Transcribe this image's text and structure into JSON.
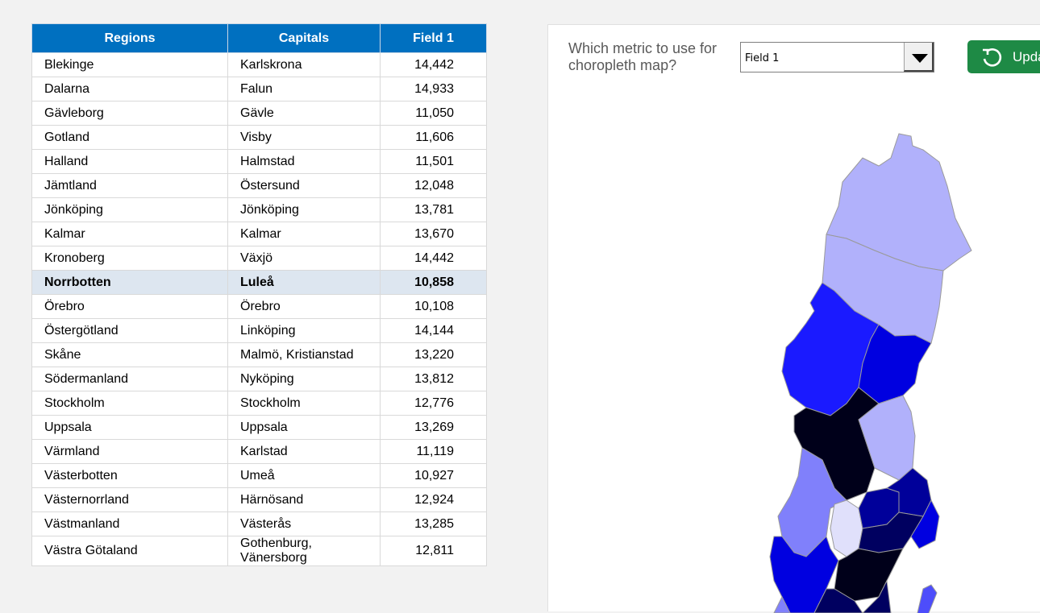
{
  "table": {
    "headers": [
      "Regions",
      "Capitals",
      "Field 1"
    ],
    "selected_index": 9,
    "rows": [
      {
        "region": "Blekinge",
        "capital": "Karlskrona",
        "value": "14,442"
      },
      {
        "region": "Dalarna",
        "capital": "Falun",
        "value": "14,933"
      },
      {
        "region": "Gävleborg",
        "capital": "Gävle",
        "value": "11,050"
      },
      {
        "region": "Gotland",
        "capital": "Visby",
        "value": "11,606"
      },
      {
        "region": "Halland",
        "capital": "Halmstad",
        "value": "11,501"
      },
      {
        "region": "Jämtland",
        "capital": "Östersund",
        "value": "12,048"
      },
      {
        "region": "Jönköping",
        "capital": "Jönköping",
        "value": "13,781"
      },
      {
        "region": "Kalmar",
        "capital": "Kalmar",
        "value": "13,670"
      },
      {
        "region": "Kronoberg",
        "capital": "Växjö",
        "value": "14,442"
      },
      {
        "region": "Norrbotten",
        "capital": "Luleå",
        "value": "10,858"
      },
      {
        "region": "Örebro",
        "capital": "Örebro",
        "value": "10,108"
      },
      {
        "region": "Östergötland",
        "capital": "Linköping",
        "value": "14,144"
      },
      {
        "region": "Skåne",
        "capital": "Malmö, Kristianstad",
        "value": "13,220"
      },
      {
        "region": "Södermanland",
        "capital": "Nyköping",
        "value": "13,812"
      },
      {
        "region": "Stockholm",
        "capital": "Stockholm",
        "value": "12,776"
      },
      {
        "region": "Uppsala",
        "capital": "Uppsala",
        "value": "13,269"
      },
      {
        "region": "Värmland",
        "capital": "Karlstad",
        "value": "11,119"
      },
      {
        "region": "Västerbotten",
        "capital": "Umeå",
        "value": "10,927"
      },
      {
        "region": "Västernorrland",
        "capital": "Härnösand",
        "value": "12,924"
      },
      {
        "region": "Västmanland",
        "capital": "Västerås",
        "value": "13,285"
      },
      {
        "region": "Västra Götaland",
        "capital": "Gothenburg, Vänersborg",
        "value": "12,811"
      }
    ]
  },
  "controls": {
    "question": "Which metric to use for choropleth map?",
    "metric_selected": "Field 1",
    "update_label": "Upda",
    "update_icon": "refresh-icon",
    "update_color": "#1e8a45"
  },
  "map": {
    "title": "Sweden choropleth map",
    "colors": {
      "lightest": "#e0e0fb",
      "light": "#b1b1fb",
      "mid_light": "#8080fb",
      "mid": "#1a1aff",
      "strong": "#0000e0",
      "dark": "#00009a",
      "darker": "#000060",
      "darkest": "#00001a"
    }
  }
}
